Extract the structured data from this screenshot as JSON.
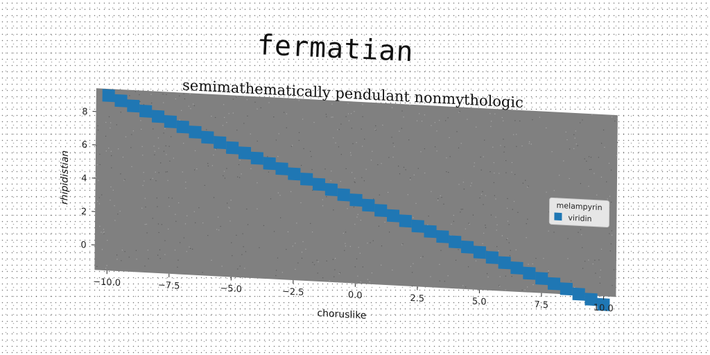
{
  "chart_data": {
    "type": "scatter",
    "title": "fermatian",
    "subtitle": "semimathematically pendulant nonmythologic",
    "xlabel": "choruslike",
    "ylabel": "rhipidistian",
    "xlim": [
      -10.5,
      10.5
    ],
    "ylim": [
      -1.5,
      9.4
    ],
    "xticks": [
      -10.0,
      -7.5,
      -5.0,
      -2.5,
      0.0,
      2.5,
      5.0,
      7.5,
      10.0
    ],
    "xtick_labels": [
      "−10.0",
      "−7.5",
      "−5.0",
      "−2.5",
      "0.0",
      "2.5",
      "5.0",
      "7.5",
      "10.0"
    ],
    "yticks": [
      0,
      2,
      4,
      6,
      8
    ],
    "ytick_labels": [
      "0",
      "2",
      "4",
      "6",
      "8"
    ],
    "grid": false,
    "legend_title": "melampyrin",
    "legend_position": "right",
    "series": [
      {
        "name": "viridin",
        "color": "#1f77b4",
        "marker": "square",
        "x_start": -10.0,
        "x_end": 10.0,
        "count": 41,
        "y_start": 9.0,
        "y_end": -2.0
      }
    ]
  },
  "colors": {
    "plot_background": "#808080",
    "series": "#1f77b4"
  }
}
